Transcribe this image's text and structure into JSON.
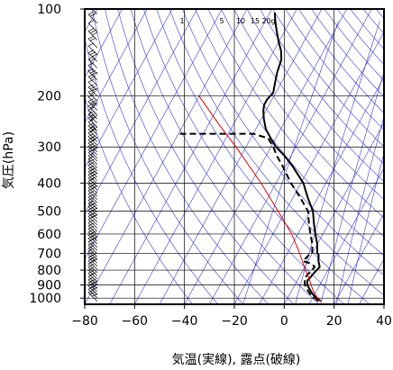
{
  "chart_data": {
    "type": "line",
    "subtype": "skew-T log-P thermodynamic diagram",
    "title": "",
    "xlabel": "気温(実線), 露点(破線)",
    "ylabel": "気圧(hPa)",
    "xlim": [
      -80,
      40
    ],
    "ylim": [
      1050,
      100
    ],
    "y_scale": "log",
    "x_ticks": [
      "−80",
      "−60",
      "−40",
      "−20",
      "0",
      "20",
      "40"
    ],
    "x_tick_values": [
      -80,
      -60,
      -40,
      -20,
      0,
      20,
      40
    ],
    "y_ticks": [
      "100",
      "200",
      "300",
      "400",
      "500",
      "600",
      "700",
      "800",
      "900",
      "1000"
    ],
    "y_tick_values": [
      100,
      200,
      300,
      400,
      500,
      600,
      700,
      800,
      900,
      1000
    ],
    "mixing_ratio_labels": [
      "1",
      "5",
      "10",
      "15",
      "20g"
    ],
    "grid": true,
    "colors": {
      "temperature": "#000000",
      "dewpoint": "#000000",
      "parcel": "#e00000",
      "guides": "#3a3ad0",
      "grid": "#000000"
    },
    "series": [
      {
        "name": "",
        "style": "solid",
        "points": [
          [
            1025,
            14
          ],
          [
            1000,
            12
          ],
          [
            980,
            10
          ],
          [
            950,
            8
          ],
          [
            925,
            6.5
          ],
          [
            900,
            5
          ],
          [
            870,
            4
          ],
          [
            850,
            4.5
          ],
          [
            820,
            5
          ],
          [
            800,
            5.5
          ],
          [
            780,
            6
          ],
          [
            760,
            5
          ],
          [
            740,
            4
          ],
          [
            710,
            3
          ],
          [
            700,
            2
          ],
          [
            650,
            0
          ],
          [
            600,
            -3
          ],
          [
            550,
            -6
          ],
          [
            500,
            -9
          ],
          [
            450,
            -14
          ],
          [
            400,
            -19
          ],
          [
            350,
            -27
          ],
          [
            320,
            -33
          ],
          [
            300,
            -38
          ],
          [
            280,
            -42
          ],
          [
            260,
            -46
          ],
          [
            240,
            -49
          ],
          [
            225,
            -51
          ],
          [
            215,
            -52
          ],
          [
            205,
            -52
          ],
          [
            195,
            -51
          ],
          [
            185,
            -52
          ],
          [
            175,
            -53
          ],
          [
            165,
            -54
          ],
          [
            150,
            -55
          ],
          [
            140,
            -57
          ],
          [
            130,
            -60
          ],
          [
            120,
            -63
          ],
          [
            110,
            -66
          ],
          [
            103,
            -68
          ]
        ]
      },
      {
        "name": "",
        "style": "dashed",
        "points": [
          [
            1025,
            13
          ],
          [
            1000,
            11
          ],
          [
            980,
            9
          ],
          [
            950,
            7
          ],
          [
            925,
            5.5
          ],
          [
            900,
            4
          ],
          [
            870,
            3
          ],
          [
            850,
            2.5
          ],
          [
            820,
            3
          ],
          [
            800,
            3.5
          ],
          [
            780,
            4
          ],
          [
            760,
            2
          ],
          [
            745,
            -2
          ],
          [
            710,
            -1
          ],
          [
            700,
            0
          ],
          [
            650,
            -2
          ],
          [
            600,
            -5
          ],
          [
            550,
            -8
          ],
          [
            500,
            -11
          ],
          [
            450,
            -17
          ],
          [
            400,
            -24
          ],
          [
            350,
            -31
          ],
          [
            320,
            -36
          ],
          [
            300,
            -39
          ],
          [
            280,
            -43
          ],
          [
            270,
            -50
          ],
          [
            270,
            -80
          ]
        ]
      },
      {
        "name": "",
        "style": "solid-red",
        "points": [
          [
            1025,
            14
          ],
          [
            1000,
            12
          ],
          [
            950,
            9
          ],
          [
            900,
            6.5
          ],
          [
            850,
            4
          ],
          [
            800,
            1
          ],
          [
            700,
            -5
          ],
          [
            600,
            -12.5
          ],
          [
            500,
            -23
          ],
          [
            400,
            -36
          ],
          [
            300,
            -54
          ],
          [
            250,
            -66
          ],
          [
            200,
            -80
          ]
        ]
      }
    ],
    "wind_barbs_column": "left, x ≈ -75, every level 1025–100 hPa"
  }
}
